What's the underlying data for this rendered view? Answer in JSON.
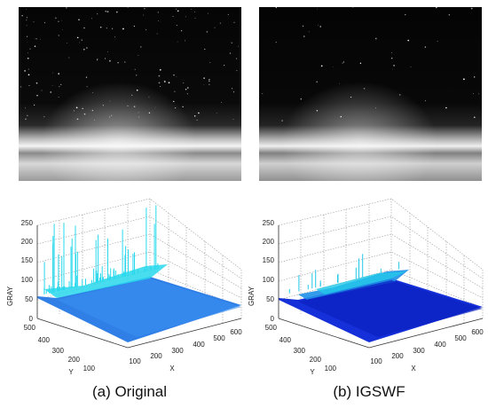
{
  "panels": [
    {
      "caption": "(a) Original",
      "plot": {
        "z_label": "GRAY",
        "y_label": "Y",
        "x_label": "X",
        "z_ticks": [
          "0",
          "50",
          "100",
          "150",
          "200",
          "250"
        ],
        "y_ticks": [
          "500",
          "400",
          "300",
          "200",
          "100"
        ],
        "x_ticks": [
          "100",
          "200",
          "300",
          "400",
          "500",
          "600"
        ],
        "surface_color": "#2f7fe6",
        "highlight_color": "#28d8ec"
      }
    },
    {
      "caption": "(b) IGSWF",
      "plot": {
        "z_label": "GRAY",
        "y_label": "Y",
        "x_label": "X",
        "z_ticks": [
          "0",
          "50",
          "100",
          "150",
          "200",
          "250"
        ],
        "y_ticks": [
          "500",
          "400",
          "300",
          "200",
          "100"
        ],
        "x_ticks": [
          "100",
          "200",
          "300",
          "400",
          "500",
          "600"
        ],
        "surface_color": "#1530d8",
        "highlight_color": "#22c8e8"
      }
    }
  ]
}
